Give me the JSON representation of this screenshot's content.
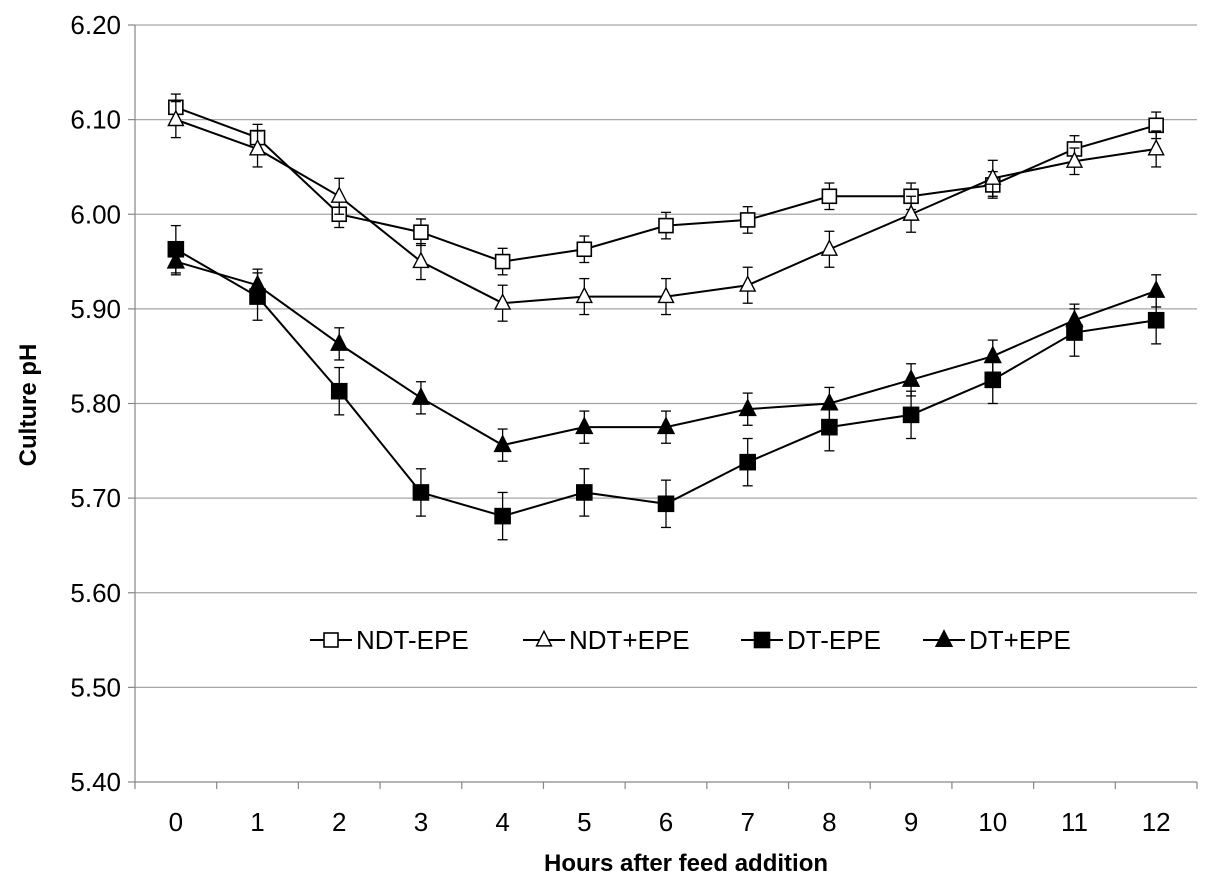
{
  "chart_data": {
    "type": "line",
    "title": "",
    "xlabel": "Hours after feed addition",
    "ylabel": "Culture pH",
    "x": [
      0,
      1,
      2,
      3,
      4,
      5,
      6,
      7,
      8,
      9,
      10,
      11,
      12
    ],
    "x_tick_labels": [
      "0",
      "1",
      "2",
      "3",
      "4",
      "5",
      "6",
      "7",
      "8",
      "9",
      "10",
      "11",
      "12"
    ],
    "ylim": [
      5.4,
      6.2
    ],
    "y_ticks": [
      5.4,
      5.5,
      5.6,
      5.7,
      5.8,
      5.9,
      6.0,
      6.1,
      6.2
    ],
    "y_tick_labels": [
      "5.40",
      "5.50",
      "5.60",
      "5.70",
      "5.80",
      "5.90",
      "6.00",
      "6.10",
      "6.20"
    ],
    "grid": "horizontal",
    "legend_position": "center, inside plot area",
    "series": [
      {
        "name": "NDT-EPE",
        "marker": "square-open",
        "values": [
          6.113,
          6.081,
          6.0,
          5.981,
          5.95,
          5.963,
          5.988,
          5.994,
          6.019,
          6.019,
          6.031,
          6.069,
          6.094
        ],
        "errors": [
          0.014,
          0.014,
          0.014,
          0.014,
          0.014,
          0.014,
          0.014,
          0.014,
          0.014,
          0.014,
          0.014,
          0.014,
          0.014
        ]
      },
      {
        "name": "NDT+EPE",
        "marker": "triangle-open",
        "values": [
          6.1,
          6.069,
          6.019,
          5.95,
          5.906,
          5.913,
          5.913,
          5.925,
          5.963,
          6.0,
          6.038,
          6.056,
          6.069
        ],
        "errors": [
          0.019,
          0.019,
          0.019,
          0.019,
          0.019,
          0.019,
          0.019,
          0.019,
          0.019,
          0.019,
          0.019,
          0.014,
          0.019
        ]
      },
      {
        "name": "DT-EPE",
        "marker": "square-filled",
        "values": [
          5.963,
          5.913,
          5.813,
          5.706,
          5.681,
          5.706,
          5.694,
          5.738,
          5.775,
          5.788,
          5.825,
          5.875,
          5.888
        ],
        "errors": [
          0.025,
          0.025,
          0.025,
          0.025,
          0.025,
          0.025,
          0.025,
          0.025,
          0.025,
          0.025,
          0.025,
          0.025,
          0.025
        ]
      },
      {
        "name": "DT+EPE",
        "marker": "triangle-filled",
        "values": [
          5.95,
          5.925,
          5.863,
          5.806,
          5.756,
          5.775,
          5.775,
          5.794,
          5.8,
          5.825,
          5.85,
          5.888,
          5.919
        ],
        "errors": [
          0.014,
          0.017,
          0.017,
          0.017,
          0.017,
          0.017,
          0.017,
          0.017,
          0.017,
          0.017,
          0.017,
          0.017,
          0.017
        ]
      }
    ],
    "colors": {
      "line": "#000000",
      "grid": "#a6a6a6",
      "axis": "#868686",
      "marker_open_fill": "#ffffff",
      "marker_filled_fill": "#000000"
    }
  }
}
